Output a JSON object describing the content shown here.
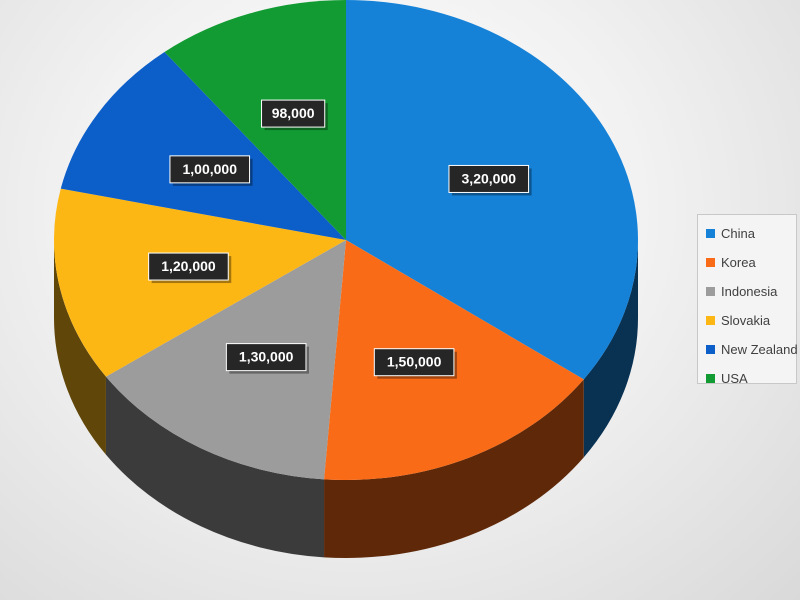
{
  "chart_data": {
    "type": "pie",
    "three_d": true,
    "title": "",
    "categories": [
      "China",
      "Korea",
      "Indonesia",
      "Slovakia",
      "New Zealand",
      "USA"
    ],
    "values": [
      320000,
      150000,
      130000,
      120000,
      100000,
      98000
    ],
    "data_labels": [
      "3,20,000",
      "1,50,000",
      "1,30,000",
      "1,20,000",
      "1,00,000",
      "98,000"
    ],
    "colors": [
      "#1582d8",
      "#f96b17",
      "#9c9c9c",
      "#fdb714",
      "#0c5ec9",
      "#139b33"
    ],
    "legend_position": "right",
    "start_angle": "12 o'clock, clockwise"
  }
}
